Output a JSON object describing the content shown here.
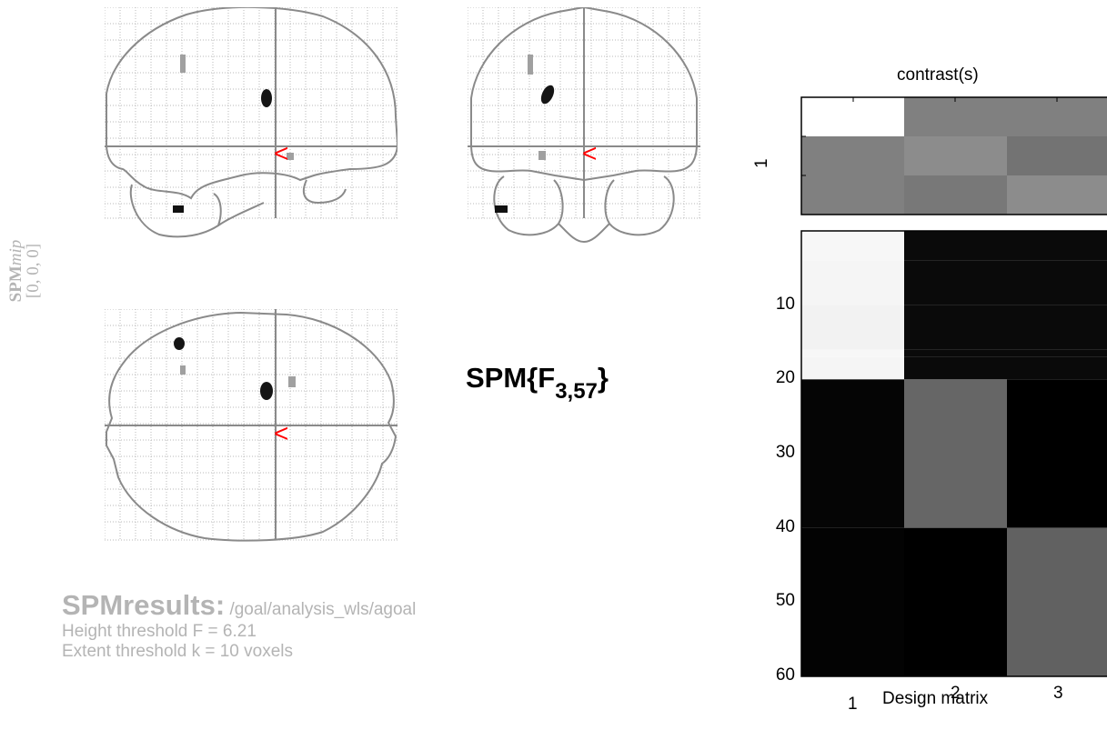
{
  "mip": {
    "label_main": "SPM",
    "label_suffix": "mip",
    "coords": "[0, 0, 0]",
    "marker_glyph": "<",
    "marker_color": "#ff0000"
  },
  "statistic": {
    "prefix": "SPM{F",
    "df": "3,57",
    "suffix": "}"
  },
  "results": {
    "title": "SPMresults:",
    "path": " /goal/analysis_wls/agoal",
    "height_threshold": "Height threshold F = 6.21",
    "extent_threshold": "Extent threshold k = 10 voxels"
  },
  "contrast": {
    "title": "contrast(s)",
    "row_label": "1",
    "weights": [
      [
        1.0,
        0.5,
        0.5
      ],
      [
        0.5,
        0.55,
        0.45
      ],
      [
        0.5,
        0.47,
        0.55
      ]
    ]
  },
  "design_matrix": {
    "xlabel": "Design matrix",
    "x_ticks": [
      "1",
      "2",
      "3"
    ],
    "y_ticks": [
      "10",
      "20",
      "30",
      "40",
      "50",
      "60"
    ],
    "ylim": [
      0,
      60
    ],
    "rows": [
      {
        "from": 0,
        "to": 4,
        "values": [
          0.97,
          0.04,
          0.04
        ]
      },
      {
        "from": 4,
        "to": 10,
        "values": [
          0.96,
          0.04,
          0.04
        ]
      },
      {
        "from": 10,
        "to": 16,
        "values": [
          0.95,
          0.04,
          0.04
        ]
      },
      {
        "from": 16,
        "to": 17,
        "values": [
          0.97,
          0.04,
          0.04
        ]
      },
      {
        "from": 17,
        "to": 20,
        "values": [
          0.96,
          0.04,
          0.04
        ]
      },
      {
        "from": 20,
        "to": 40,
        "values": [
          0.02,
          0.4,
          0.0
        ]
      },
      {
        "from": 40,
        "to": 60,
        "values": [
          0.01,
          0.0,
          0.38
        ]
      }
    ]
  }
}
